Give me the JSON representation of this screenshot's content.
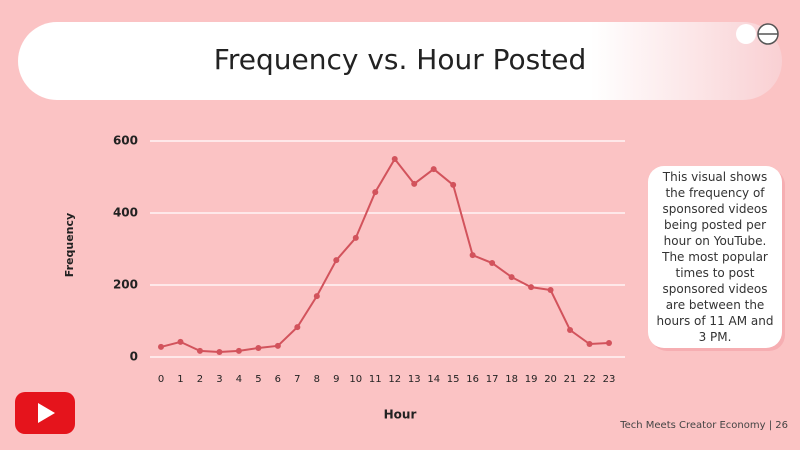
{
  "chart_data": {
    "type": "line",
    "title": "Frequency vs. Hour Posted",
    "x_label": "Hour",
    "y_label": "Frequency",
    "categories": [
      "0",
      "1",
      "2",
      "3",
      "4",
      "5",
      "6",
      "7",
      "8",
      "9",
      "10",
      "11",
      "12",
      "13",
      "14",
      "15",
      "16",
      "17",
      "18",
      "19",
      "20",
      "21",
      "22",
      "23"
    ],
    "values": [
      28,
      42,
      17,
      14,
      17,
      25,
      31,
      83,
      169,
      269,
      331,
      458,
      550,
      481,
      522,
      478,
      283,
      261,
      222,
      194,
      186,
      75,
      36,
      39
    ],
    "color": "#d2535c",
    "ylim": [
      0,
      600
    ],
    "yticks": [
      0,
      200,
      400,
      600
    ],
    "grid": true,
    "annotation": "This visual shows the frequency of sponsored videos being posted per hour on YouTube. The most popular times to post sponsored videos are between the hours of 11 AM and 3 PM."
  },
  "footer": "Tech Meets Creator Economy | 26"
}
